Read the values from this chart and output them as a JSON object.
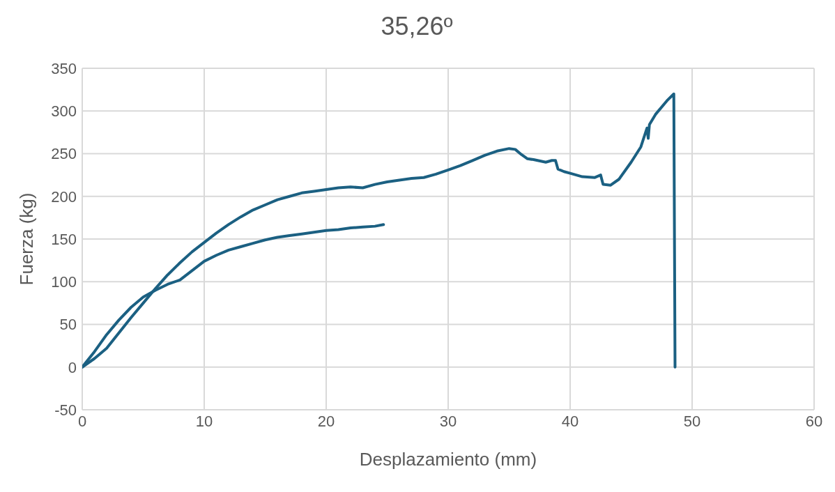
{
  "chart_data": {
    "type": "line",
    "title": "35,26º",
    "xlabel": "Desplazamiento (mm)",
    "ylabel": "Fuerza (kg)",
    "xlim": [
      0,
      60
    ],
    "xticks": [
      0,
      10,
      20,
      30,
      40,
      50,
      60
    ],
    "ylim": [
      -50,
      350
    ],
    "yticks": [
      -50,
      0,
      50,
      100,
      150,
      200,
      250,
      300,
      350
    ],
    "grid": true,
    "marker": "none",
    "line_style": "solid",
    "series": [
      {
        "color": "#1b6082",
        "x": [
          0,
          1,
          2,
          3,
          4,
          5,
          6,
          7,
          8,
          9,
          10,
          11,
          12,
          13,
          14,
          15,
          16,
          17,
          18,
          19,
          20,
          21,
          22,
          23,
          24,
          25,
          26,
          27,
          28,
          29,
          30,
          31,
          32,
          33,
          34,
          35,
          35.5,
          36,
          36.5,
          37,
          38,
          38.5,
          38.8,
          39,
          39.5,
          40,
          41,
          42,
          42.5,
          42.7,
          43.3,
          44,
          45,
          45.8,
          46.3,
          46.4,
          46.5,
          47,
          48,
          48.5,
          48.6
        ],
        "values": [
          0,
          10,
          22,
          40,
          58,
          75,
          92,
          108,
          122,
          135,
          146,
          157,
          167,
          176,
          184,
          190,
          196,
          200,
          204,
          206,
          208,
          210,
          211,
          210,
          214,
          217,
          219,
          221,
          222,
          226,
          231,
          236,
          242,
          248,
          253,
          256,
          255,
          249,
          244,
          243,
          240,
          242,
          242,
          232,
          229,
          227,
          223,
          222,
          225,
          214,
          213,
          220,
          240,
          258,
          280,
          268,
          284,
          296,
          313,
          320,
          0
        ]
      },
      {
        "color": "#1b6082",
        "x": [
          0,
          1,
          2,
          3,
          4,
          5,
          6,
          7,
          8,
          9,
          10,
          11,
          12,
          13,
          14,
          15,
          16,
          17,
          18,
          19,
          20,
          21,
          22,
          23,
          24,
          24.7
        ],
        "values": [
          0,
          18,
          38,
          55,
          70,
          82,
          90,
          97,
          102,
          113,
          124,
          131,
          137,
          141,
          145,
          149,
          152,
          154,
          156,
          158,
          160,
          161,
          163,
          164,
          165,
          167
        ]
      }
    ]
  }
}
